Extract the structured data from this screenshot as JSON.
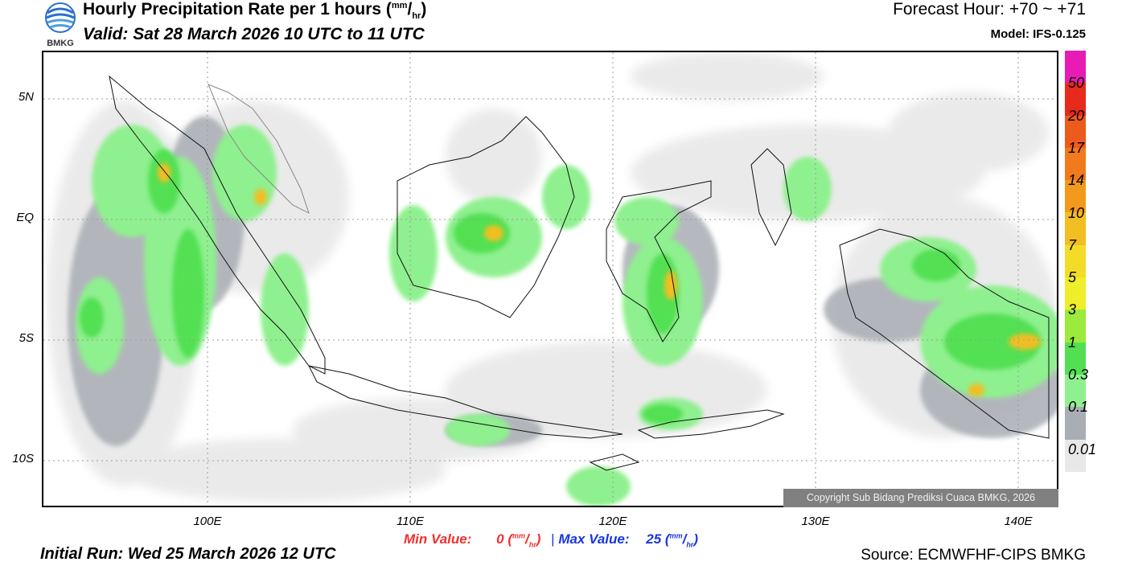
{
  "header": {
    "title_main": "Hourly Precipitation Rate per 1 hours (",
    "unit_num": "mm",
    "unit_slash": "/",
    "unit_den": "hr",
    "title_close": ")",
    "valid": "Valid: Sat 28 March 2026 10 UTC to 11 UTC",
    "forecast_hour": "Forecast Hour: +70 ~ +71",
    "model": "Model: IFS-0.125",
    "logo_text": "BMKG"
  },
  "axes": {
    "lat_labels": [
      "5N",
      "EQ",
      "5S",
      "10S"
    ],
    "lon_labels": [
      "100E",
      "110E",
      "120E",
      "130E",
      "140E"
    ]
  },
  "colorbar": {
    "colors": [
      "#e8e8e8",
      "#a9adb4",
      "#8ff08f",
      "#52e052",
      "#9bea3c",
      "#eeee2a",
      "#f3dc28",
      "#f2be22",
      "#f29a1c",
      "#f07a1c",
      "#ec5a1c",
      "#e82a1c",
      "#e81cb4"
    ],
    "labels": [
      "0.01",
      "0.1",
      "0.3",
      "1",
      "3",
      "5",
      "7",
      "10",
      "14",
      "17",
      "20",
      "50"
    ]
  },
  "footer": {
    "copyright": "Copyright Sub Bidang Prediksi Cuaca BMKG, 2026",
    "min_label": "Min Value:",
    "min_value": "0",
    "max_label": "Max Value:",
    "max_value": "25",
    "unit_num": "mm",
    "unit_den": "hr",
    "separator": "|",
    "initial_run": "Initial Run: Wed 25 March 2026 12 UTC",
    "source": "Source: ECMWFHF-CIPS BMKG"
  }
}
